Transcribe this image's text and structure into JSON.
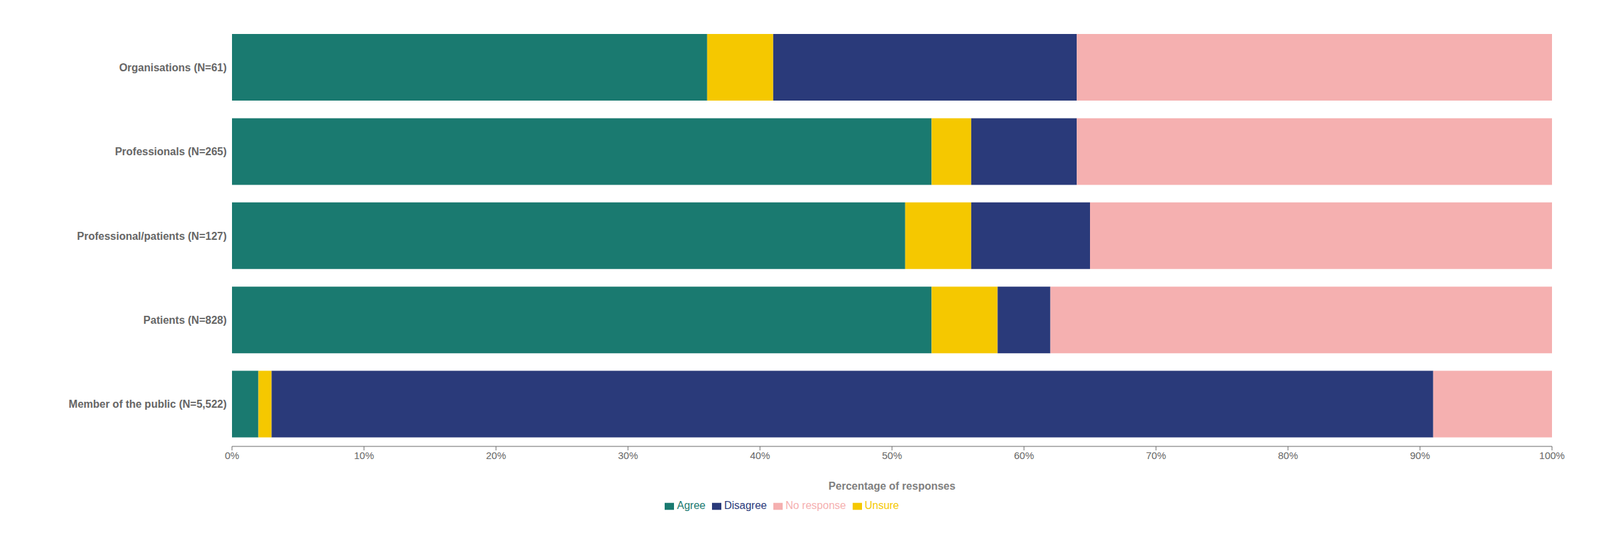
{
  "chart_data": {
    "type": "bar",
    "orientation": "horizontal",
    "stacked": true,
    "categories": [
      "Member of the public (N=5,522)",
      "Patients (N=828)",
      "Professional/patients (N=127)",
      "Professionals (N=265)",
      "Organisations (N=61)"
    ],
    "series": [
      {
        "name": "Agree",
        "color": "#1a7a70",
        "values": [
          2,
          53,
          51,
          53,
          36
        ]
      },
      {
        "name": "Unsure",
        "color": "#f5c800",
        "values": [
          1,
          5,
          5,
          3,
          5
        ]
      },
      {
        "name": "Disagree",
        "color": "#2a3a7a",
        "values": [
          88,
          4,
          9,
          8,
          23
        ]
      },
      {
        "name": "No response",
        "color": "#f5b0b0",
        "values": [
          9,
          38,
          35,
          36,
          36
        ]
      }
    ],
    "xlabel": "Percentage of responses",
    "xlim": [
      0,
      100
    ],
    "xticks": [
      {
        "value": 0,
        "label": "0%"
      },
      {
        "value": 10,
        "label": "10%"
      },
      {
        "value": 20,
        "label": "20%"
      },
      {
        "value": 30,
        "label": "30%"
      },
      {
        "value": 40,
        "label": "40%"
      },
      {
        "value": 50,
        "label": "50%"
      },
      {
        "value": 60,
        "label": "60%"
      },
      {
        "value": 70,
        "label": "70%"
      },
      {
        "value": 80,
        "label": "80%"
      },
      {
        "value": 90,
        "label": "90%"
      },
      {
        "value": 100,
        "label": "100%"
      }
    ],
    "grid": false,
    "legend": "bottom"
  }
}
